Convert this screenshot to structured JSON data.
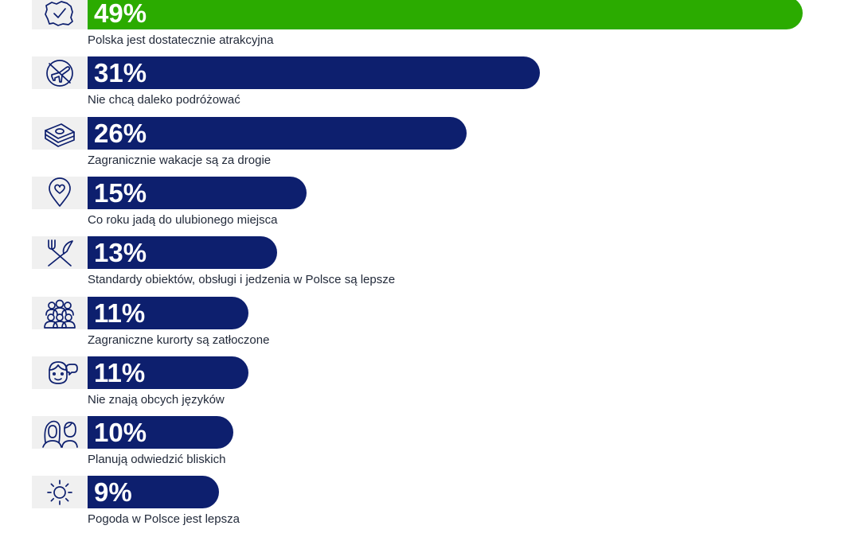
{
  "colors": {
    "highlight": "#2bab00",
    "bar": "#0d1f6e",
    "icon": "#0d1f6e",
    "icon_bg": "#f0f0f0"
  },
  "chart_data": {
    "type": "bar",
    "orientation": "horizontal",
    "unit": "%",
    "value_max": 49,
    "categories": [
      "Polska jest dostatecznie atrakcyjna",
      "Nie chcą daleko podróżować",
      "Zagranicznie wakacje są za drogie",
      "Co roku jadą do ulubionego miejsca",
      "Standardy obiektów, obsługi i jedzenia w Polsce są lepsze",
      "Zagraniczne kurorty są zatłoczone",
      "Nie znają obcych języków",
      "Planują odwiedzić bliskich",
      "Pogoda w Polsce jest lepsza"
    ],
    "values": [
      49,
      31,
      26,
      15,
      13,
      11,
      11,
      10,
      9
    ],
    "value_labels": [
      "49%",
      "31%",
      "26%",
      "15%",
      "13%",
      "11%",
      "11%",
      "10%",
      "9%"
    ],
    "icons": [
      "poland-map-check-icon",
      "no-flight-icon",
      "money-stack-icon",
      "heart-location-pin-icon",
      "fork-knife-icon",
      "crowd-icon",
      "face-speech-bubble-icon",
      "couple-icon",
      "sun-icon"
    ],
    "highlight_index": 0
  }
}
